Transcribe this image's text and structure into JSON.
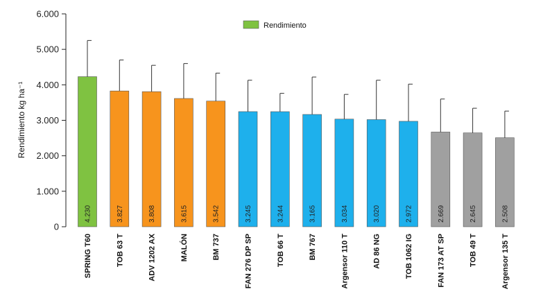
{
  "chart_data": {
    "type": "bar",
    "title": "",
    "xlabel": "",
    "ylabel": "Rendimiento kg ha⁻¹",
    "ylim": [
      0,
      6000
    ],
    "yticks": [
      0,
      1000,
      2000,
      3000,
      4000,
      5000,
      6000
    ],
    "ytick_labels": [
      "0",
      "1.000",
      "2.000",
      "3.000",
      "4.000",
      "5.000",
      "6.000"
    ],
    "legend": {
      "label": "Rendimiento",
      "color": "#7fc241",
      "placement": "top-center"
    },
    "grid": false,
    "categories": [
      "SPRING T60",
      "TOB 63 T",
      "ADV 1202 AX",
      "MALÓN",
      "BM 737",
      "FAN 276 DP SP",
      "TOB 66 T",
      "BM 767",
      "Argensor 110 T",
      "AD 86 NG",
      "TOB 1062 IG",
      "FAN 173 AT SP",
      "TOB 49 T",
      "Argensor 135 T"
    ],
    "values": [
      4230,
      3827,
      3808,
      3615,
      3542,
      3245,
      3244,
      3165,
      3034,
      3020,
      2972,
      2669,
      2645,
      2508
    ],
    "value_labels": [
      "4.230",
      "3.827",
      "3.808",
      "3.615",
      "3.542",
      "3.245",
      "3.244",
      "3.165",
      "3.034",
      "3.020",
      "2.972",
      "2.669",
      "2.645",
      "2.508"
    ],
    "error_upper": [
      5250,
      4700,
      4550,
      4600,
      4330,
      4130,
      3760,
      4220,
      3730,
      4130,
      4020,
      3600,
      3340,
      3260
    ],
    "colors": [
      "#7fc241",
      "#f7941d",
      "#f7941d",
      "#f7941d",
      "#f7941d",
      "#1eb0ec",
      "#1eb0ec",
      "#1eb0ec",
      "#1eb0ec",
      "#1eb0ec",
      "#1eb0ec",
      "#a0a0a0",
      "#a0a0a0",
      "#a0a0a0"
    ]
  }
}
